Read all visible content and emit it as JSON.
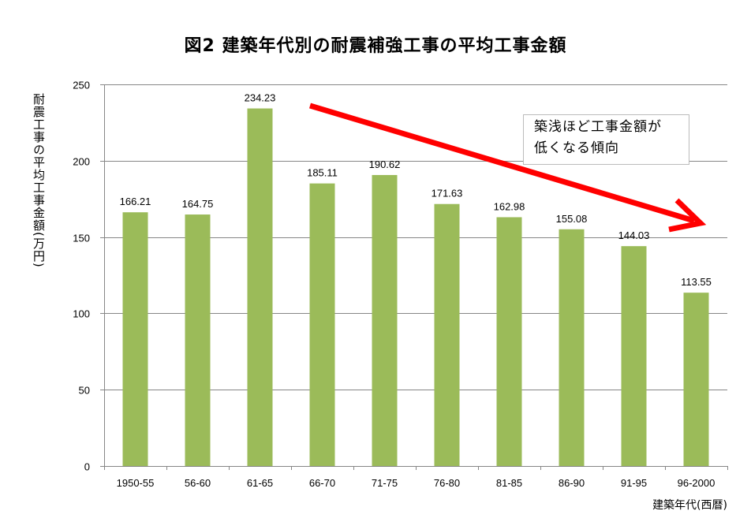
{
  "chart_data": {
    "type": "bar",
    "title": "図2  建築年代別の耐震補強工事の平均工事金額",
    "xlabel": "建築年代(西暦)",
    "ylabel": "耐震工事の平均工事金額(万円)",
    "categories": [
      "1950-55",
      "56-60",
      "61-65",
      "66-70",
      "71-75",
      "76-80",
      "81-85",
      "86-90",
      "91-95",
      "96-2000"
    ],
    "values": [
      166.21,
      164.75,
      234.23,
      185.11,
      190.62,
      171.63,
      162.98,
      155.08,
      144.03,
      113.55
    ],
    "value_labels": [
      "166.21",
      "164.75",
      "234.23",
      "185.11",
      "190.62",
      "171.63",
      "162.98",
      "155.08",
      "144.03",
      "113.55"
    ],
    "ylim": [
      0,
      250
    ],
    "yticks": [
      0,
      50,
      100,
      150,
      200,
      250
    ],
    "grid": true,
    "legend": null,
    "bar_color": "#9BBB59",
    "annotations": [
      {
        "type": "arrow",
        "color": "#FF0000",
        "description": "downward trend arrow"
      },
      {
        "type": "textbox",
        "text": "築浅ほど工事金額が低くなる傾向"
      }
    ]
  },
  "title": "図2  建築年代別の耐震補強工事の平均工事金額",
  "axis": {
    "x_label": "建築年代(西暦)",
    "y_label": "耐震工事の平均工事金額(万円)"
  },
  "callout": {
    "line1": "築浅ほど工事金額が",
    "line2": "低くなる傾向"
  },
  "colors": {
    "bar": "#9BBB59",
    "arrow": "#FF0000",
    "grid": "#868686"
  }
}
